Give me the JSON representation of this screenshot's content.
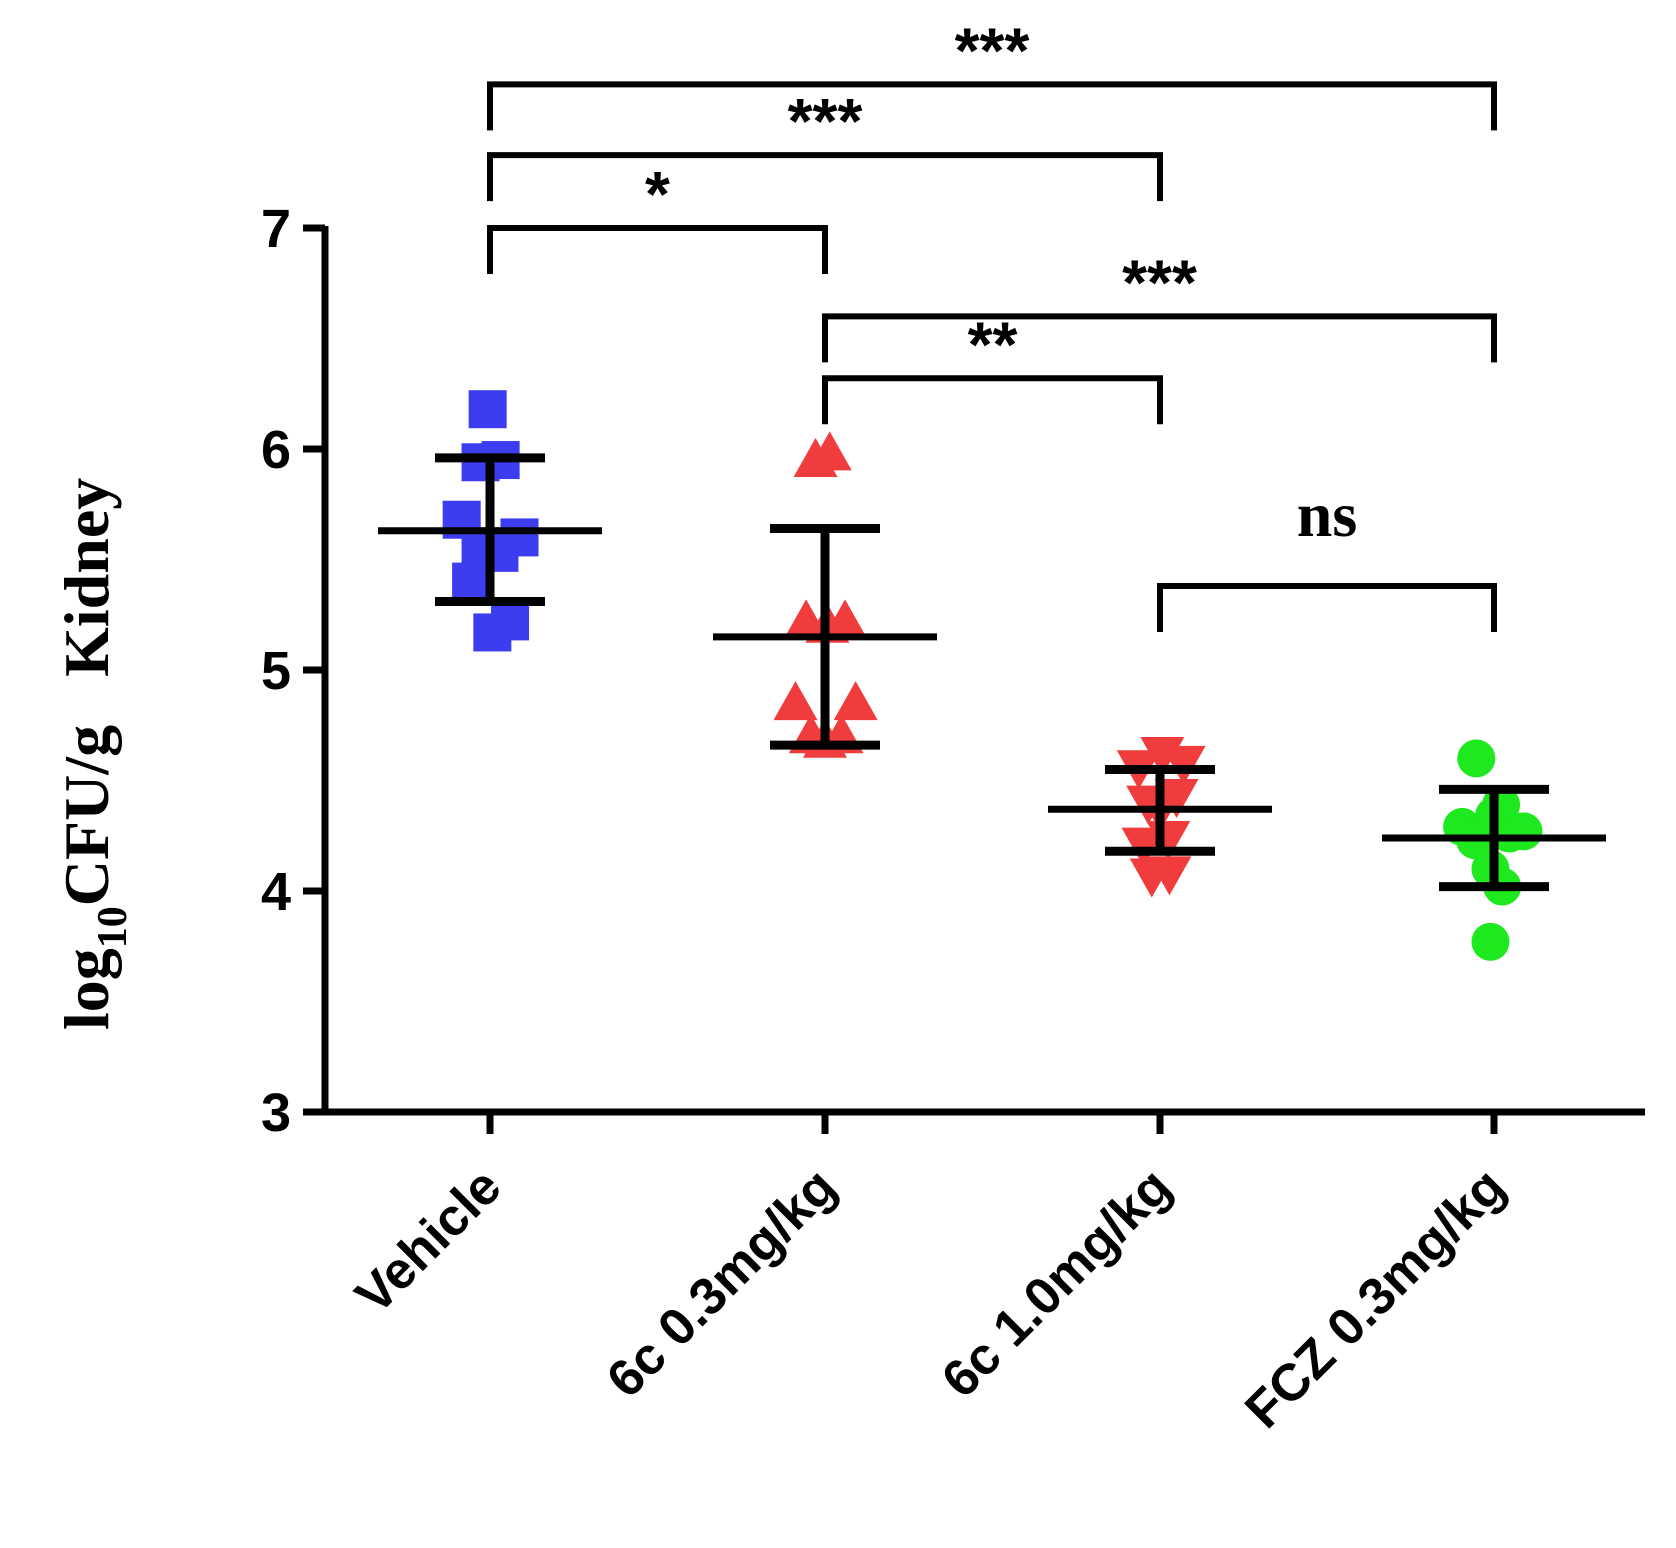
{
  "chart_data": {
    "type": "scatter",
    "title": "",
    "xlabel": "",
    "ylabel": {
      "prefix": "log",
      "subscript": "10",
      "suffix": "CFU/g   Kidney"
    },
    "ylim": [
      3,
      7
    ],
    "yticks": [
      "3",
      "4",
      "5",
      "6",
      "7"
    ],
    "categories": [
      "Vehicle",
      "6c   0.3mg/kg",
      "6c   1.0mg/kg",
      "FCZ   0.3mg/kg"
    ],
    "series": [
      {
        "name": "Vehicle",
        "marker": "square",
        "color": "#3c3cf0",
        "mean": 5.63,
        "err_low": 5.31,
        "err_high": 5.96,
        "points": [
          [
            -0.02,
            6.18
          ],
          [
            -0.08,
            5.94
          ],
          [
            0.09,
            5.95
          ],
          [
            -0.24,
            5.68
          ],
          [
            -0.08,
            5.56
          ],
          [
            0.08,
            5.53
          ],
          [
            0.25,
            5.6
          ],
          [
            -0.16,
            5.4
          ],
          [
            0.02,
            5.17
          ],
          [
            0.17,
            5.22
          ]
        ]
      },
      {
        "name": "6c   0.3mg/kg",
        "marker": "triangle-up",
        "color": "#f03c3c",
        "mean": 5.15,
        "err_low": 4.66,
        "err_high": 5.64,
        "points": [
          [
            -0.08,
            5.95
          ],
          [
            0.04,
            5.98
          ],
          [
            -0.16,
            5.22
          ],
          [
            0.02,
            5.2
          ],
          [
            0.17,
            5.22
          ],
          [
            -0.25,
            4.85
          ],
          [
            0.26,
            4.85
          ],
          [
            -0.12,
            4.7
          ],
          [
            0.0,
            4.68
          ],
          [
            0.14,
            4.7
          ]
        ]
      },
      {
        "name": "6c   1.0mg/kg",
        "marker": "triangle-down",
        "color": "#f03c3c",
        "mean": 4.37,
        "err_low": 4.18,
        "err_high": 4.55,
        "points": [
          [
            -0.18,
            4.56
          ],
          [
            0.02,
            4.62
          ],
          [
            0.2,
            4.58
          ],
          [
            -0.1,
            4.4
          ],
          [
            0.0,
            4.37
          ],
          [
            0.14,
            4.43
          ],
          [
            -0.14,
            4.21
          ],
          [
            0.07,
            4.24
          ],
          [
            -0.07,
            4.07
          ],
          [
            0.08,
            4.08
          ]
        ]
      },
      {
        "name": "FCZ   0.3mg/kg",
        "marker": "circle",
        "color": "#1ee81e",
        "mean": 4.24,
        "err_low": 4.02,
        "err_high": 4.46,
        "points": [
          [
            -0.15,
            4.6
          ],
          [
            0.06,
            4.39
          ],
          [
            -0.27,
            4.29
          ],
          [
            -0.16,
            4.23
          ],
          [
            0.0,
            4.34
          ],
          [
            0.13,
            4.26
          ],
          [
            0.25,
            4.27
          ],
          [
            -0.03,
            4.1
          ],
          [
            0.07,
            4.02
          ],
          [
            -0.03,
            3.77
          ]
        ]
      }
    ],
    "comparisons": [
      {
        "from": 0,
        "to": 3,
        "label": "***",
        "y": 7.65
      },
      {
        "from": 0,
        "to": 2,
        "label": "***",
        "y": 7.33
      },
      {
        "from": 0,
        "to": 1,
        "label": "*",
        "y": 7.0
      },
      {
        "from": 1,
        "to": 3,
        "label": "***",
        "y": 6.6
      },
      {
        "from": 1,
        "to": 2,
        "label": "**",
        "y": 6.32
      },
      {
        "from": 2,
        "to": 3,
        "label": "ns",
        "y": 5.38
      }
    ]
  }
}
